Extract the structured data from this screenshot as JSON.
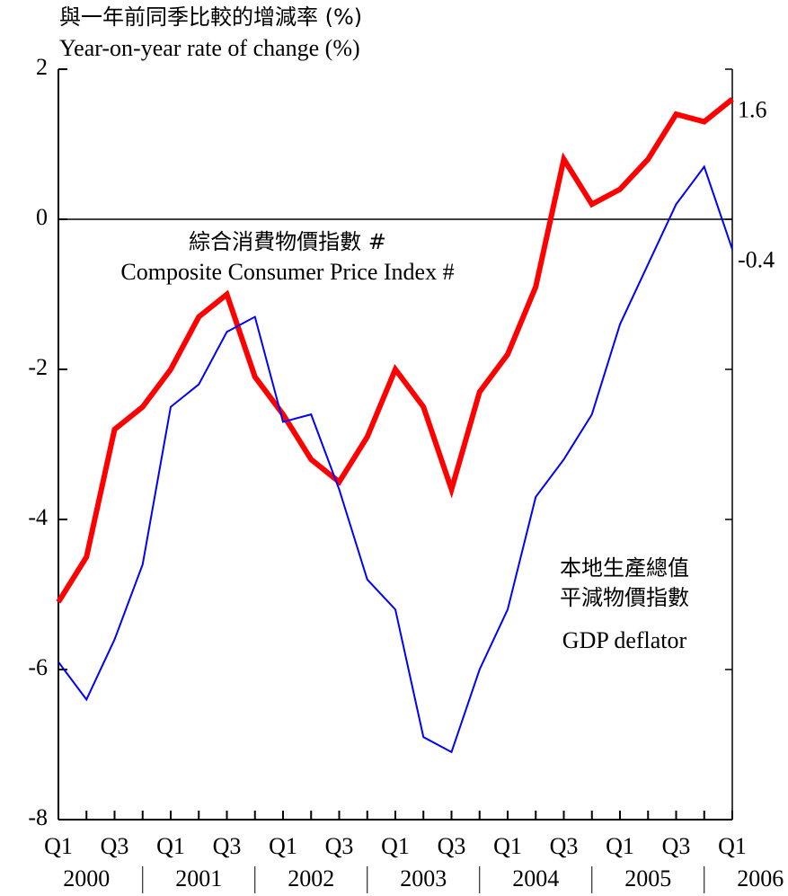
{
  "chart_data": {
    "type": "line",
    "title_zh": "與一年前同季比較的增減率 (%)",
    "title": "Year-on-year rate of change (%)",
    "categories": [
      "Q1",
      null,
      "Q3",
      null,
      "Q1",
      null,
      "Q3",
      null,
      "Q1",
      null,
      "Q3",
      null,
      "Q1",
      null,
      "Q3",
      null,
      "Q1",
      null,
      "Q3",
      null,
      "Q1",
      null,
      "Q3",
      null,
      "Q1"
    ],
    "years": [
      "2000",
      "2001",
      "2002",
      "2003",
      "2004",
      "2005",
      "2006"
    ],
    "series": [
      {
        "name": "Composite Consumer Price Index #",
        "label_zh": [
          "綜合消費物價指數 #"
        ],
        "color": "#ff0000",
        "width": 6,
        "values": [
          -5.1,
          -4.5,
          -2.8,
          -2.5,
          -2.0,
          -1.3,
          -1.0,
          -2.1,
          -2.6,
          -3.2,
          -3.5,
          -2.9,
          -2.0,
          -2.5,
          -3.6,
          -2.3,
          -1.8,
          -0.9,
          0.8,
          0.2,
          0.4,
          0.8,
          1.4,
          1.3,
          1.6
        ]
      },
      {
        "name": "GDP deflator",
        "label_zh": [
          "本地生產總值",
          "平減物價指數"
        ],
        "color": "#0000ff",
        "width": 2,
        "values": [
          -5.9,
          -6.4,
          -5.6,
          -4.6,
          -2.5,
          -2.2,
          -1.5,
          -1.3,
          -2.7,
          -2.6,
          -3.6,
          -4.8,
          -5.2,
          -6.9,
          -7.1,
          -6.0,
          -5.2,
          -3.7,
          -3.2,
          -2.6,
          -1.4,
          -0.6,
          0.2,
          0.7,
          -0.4
        ]
      }
    ],
    "ylim": [
      -8,
      2
    ],
    "yticks": [
      -8,
      -6,
      -4,
      -2,
      0,
      2
    ],
    "zero_line": true
  }
}
